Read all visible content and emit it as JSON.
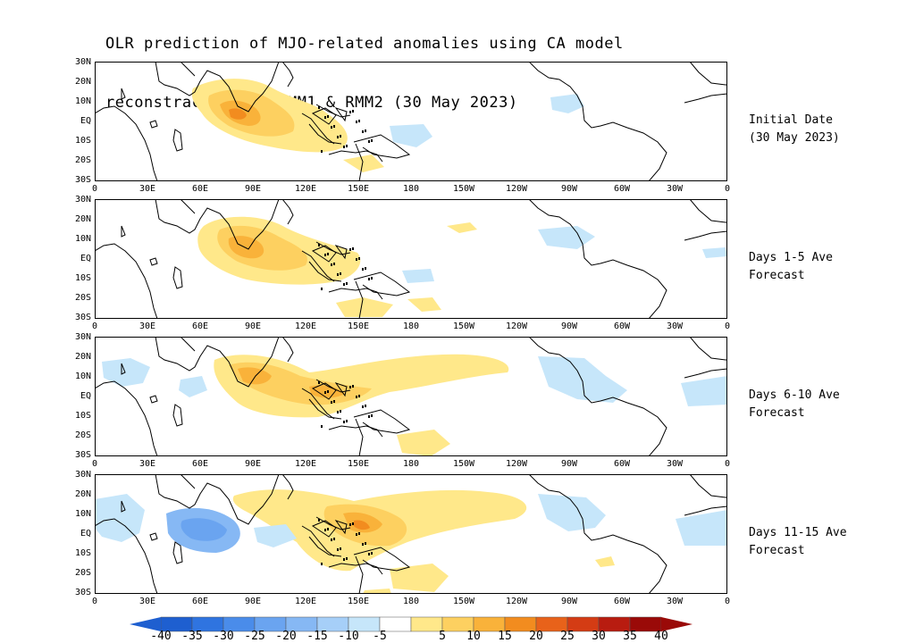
{
  "title_line1": "OLR prediction of MJO-related anomalies using CA model",
  "title_line2": "reconstraction by RMM1 & RMM2 (30 May 2023)",
  "lat_labels": [
    "30N",
    "20N",
    "10N",
    "EQ",
    "10S",
    "20S",
    "30S"
  ],
  "lon_labels": [
    "0",
    "30E",
    "60E",
    "90E",
    "120E",
    "150E",
    "180",
    "150W",
    "120W",
    "90W",
    "60W",
    "30W",
    "0"
  ],
  "panels": [
    {
      "line1": "Initial Date",
      "line2": "(30 May 2023)"
    },
    {
      "line1": "Days 1-5 Ave",
      "line2": "Forecast"
    },
    {
      "line1": "Days 6-10 Ave",
      "line2": "Forecast"
    },
    {
      "line1": "Days 11-15 Ave",
      "line2": "Forecast"
    }
  ],
  "colorbar": {
    "labels": [
      "-40",
      "-35",
      "-30",
      "-25",
      "-20",
      "-15",
      "-10",
      "-5",
      "5",
      "10",
      "15",
      "20",
      "25",
      "30",
      "35",
      "40"
    ],
    "colors": [
      "#1e5fd0",
      "#2f74e0",
      "#4a8cea",
      "#6aa4f0",
      "#86b8f4",
      "#a6cff8",
      "#c6e6fa",
      "#ffffff",
      "#ffe88a",
      "#fdd060",
      "#f9b23a",
      "#f28c1f",
      "#e8621a",
      "#d43c14",
      "#b81c10",
      "#9a0a08"
    ]
  }
}
